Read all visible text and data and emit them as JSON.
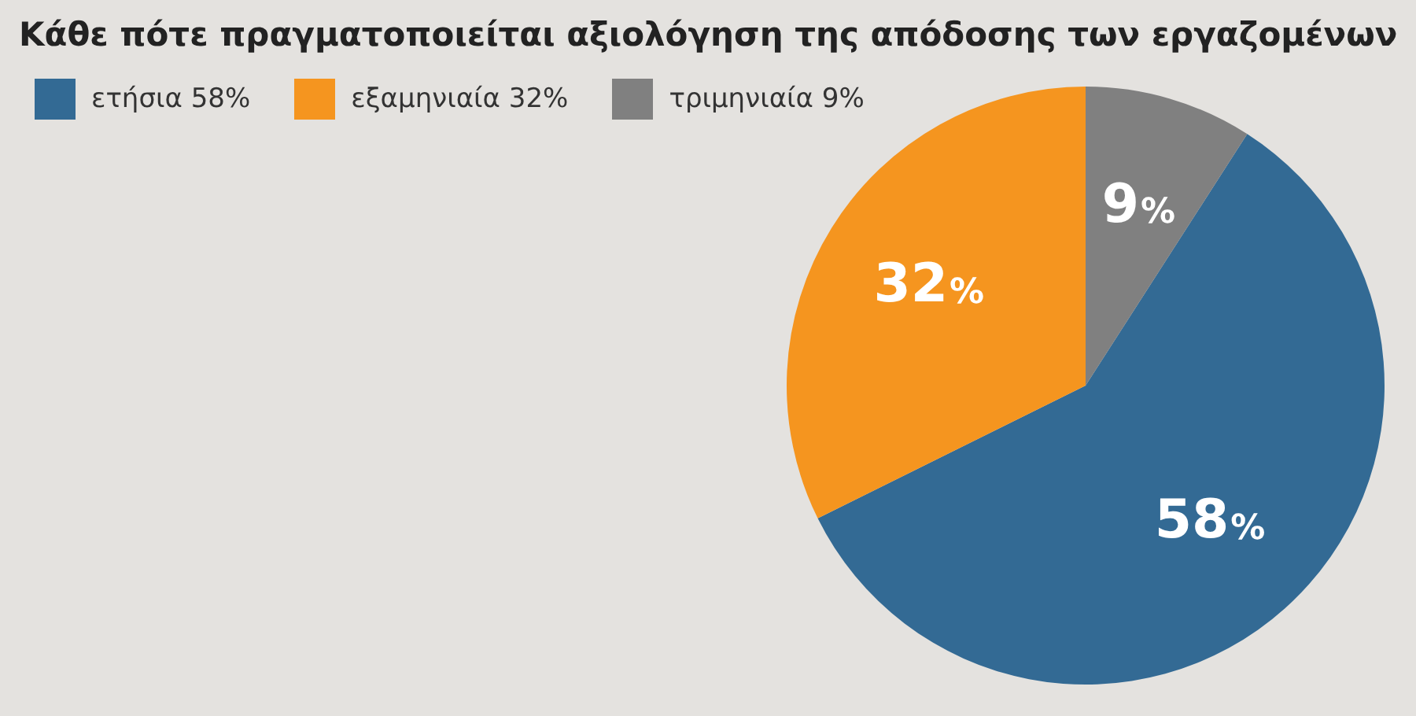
{
  "chart_data": {
    "type": "pie",
    "title": "Κάθε πότε πραγματοποιείται αξιολόγηση της απόδοσης των εργαζομένων",
    "categories": [
      "ετήσια 58%",
      "εξαμηνιαία 32%",
      "τριμηνιαία 9%"
    ],
    "values": [
      58,
      32,
      9
    ],
    "colors": [
      "#336a94",
      "#f5951f",
      "#808080"
    ],
    "value_labels": [
      "58%",
      "32%",
      "9%"
    ],
    "legend": "top left"
  }
}
